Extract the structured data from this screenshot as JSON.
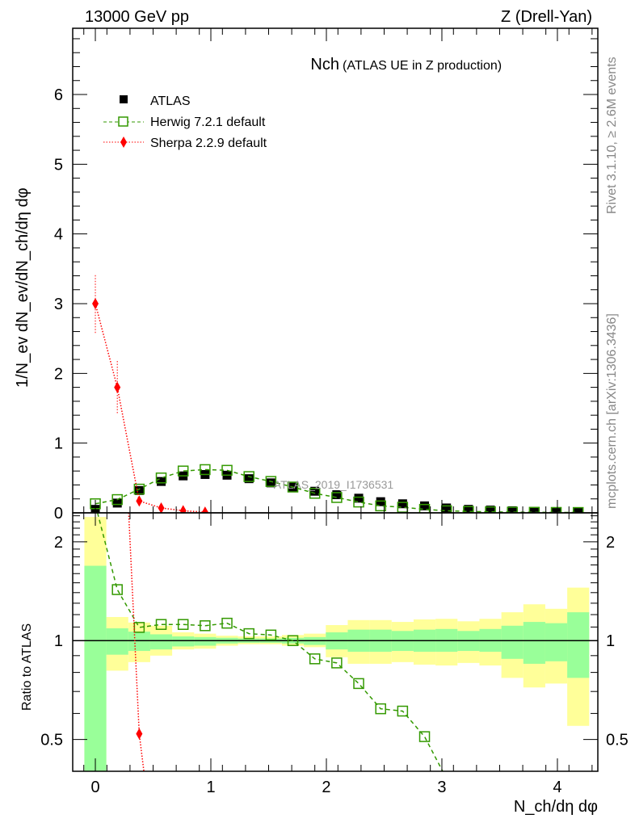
{
  "header": {
    "left": "13000 GeV pp",
    "right": "Z (Drell-Yan)"
  },
  "side_labels": {
    "rivet": "Rivet 3.1.10, ≥ 2.6M events",
    "mcplots": "mcplots.cern.ch [arXiv:1306.3436]"
  },
  "chart_data": [
    {
      "type": "scatter",
      "title": "Nch",
      "subtitle": "(ATLAS UE in Z production)",
      "watermark": "ATLAS_2019_I1736531",
      "ylabel": "1/N_ev dN_ev/dN_ch/dη dφ",
      "xlim": [
        -0.196,
        4.35
      ],
      "ylim": [
        0,
        6.95
      ],
      "yticks": [
        0,
        1,
        2,
        3,
        4,
        5,
        6
      ],
      "ytick_labels": [
        "0",
        "1",
        "2",
        "3",
        "4",
        "5",
        "6"
      ],
      "legend_position": "top-left",
      "x": [
        0,
        0.19,
        0.38,
        0.57,
        0.76,
        0.95,
        1.14,
        1.33,
        1.52,
        1.71,
        1.9,
        2.09,
        2.28,
        2.47,
        2.66,
        2.85,
        3.04,
        3.23,
        3.42,
        3.61,
        3.8,
        3.99,
        4.18
      ],
      "series": [
        {
          "name": "ATLAS",
          "color": "#000000",
          "values": [
            0.05,
            0.14,
            0.32,
            0.45,
            0.53,
            0.55,
            0.54,
            0.49,
            0.43,
            0.37,
            0.31,
            0.26,
            0.21,
            0.16,
            0.13,
            0.1,
            0.07,
            0.05,
            0.04,
            0.03,
            0.02,
            0.015,
            0.01
          ]
        },
        {
          "name": "Herwig 7.2.1 default",
          "color": "#339900",
          "values": [
            0.13,
            0.19,
            0.34,
            0.5,
            0.6,
            0.62,
            0.61,
            0.52,
            0.45,
            0.37,
            0.28,
            0.22,
            0.155,
            0.1,
            0.08,
            0.05,
            0.03,
            0.02,
            0.015,
            0.01,
            0.008,
            0.006,
            0.005
          ]
        },
        {
          "name": "Sherpa 2.2.9 default",
          "color": "#ff0000",
          "values": [
            3.0,
            1.8,
            0.17,
            0.07,
            0.03,
            0.01
          ],
          "err_low": [
            2.58,
            1.43,
            0.12,
            0.05,
            0.02,
            0.005
          ],
          "err_high": [
            3.43,
            2.18,
            0.22,
            0.09,
            0.04,
            0.015
          ]
        }
      ]
    },
    {
      "type": "line",
      "ylabel": "Ratio to ATLAS",
      "xlabel": "N_ch/dη dφ",
      "yscale": "log",
      "ylim": [
        0.4,
        2.45
      ],
      "yticks": [
        0.5,
        1,
        2
      ],
      "ytick_labels": [
        "0.5",
        "1",
        "2"
      ],
      "xticks": [
        0,
        1,
        2,
        3,
        4
      ],
      "xtick_labels": [
        "0",
        "1",
        "2",
        "3",
        "4"
      ],
      "bin_half_width": 0.095,
      "band_total": {
        "color": "#ffff99",
        "upper": [
          2.38,
          1.18,
          1.135,
          1.11,
          1.06,
          1.05,
          1.035,
          1.03,
          1.03,
          1.04,
          1.05,
          1.115,
          1.155,
          1.155,
          1.14,
          1.16,
          1.165,
          1.145,
          1.165,
          1.22,
          1.29,
          1.25,
          1.45
        ],
        "lower": [
          0.4,
          0.81,
          0.86,
          0.9,
          0.94,
          0.945,
          0.965,
          0.975,
          0.975,
          0.965,
          0.955,
          0.89,
          0.85,
          0.85,
          0.86,
          0.845,
          0.84,
          0.855,
          0.84,
          0.77,
          0.72,
          0.74,
          0.55
        ]
      },
      "band_stat": {
        "color": "#99ff99",
        "upper": [
          1.69,
          1.09,
          1.065,
          1.045,
          1.03,
          1.025,
          1.02,
          1.015,
          1.015,
          1.02,
          1.025,
          1.06,
          1.08,
          1.08,
          1.07,
          1.08,
          1.085,
          1.07,
          1.085,
          1.11,
          1.14,
          1.13,
          1.22
        ],
        "lower": [
          0.4,
          0.906,
          0.93,
          0.94,
          0.96,
          0.965,
          0.98,
          0.985,
          0.985,
          0.98,
          0.97,
          0.94,
          0.925,
          0.925,
          0.93,
          0.925,
          0.925,
          0.93,
          0.925,
          0.88,
          0.85,
          0.865,
          0.77
        ]
      },
      "herwig_ratio": [
        2.6,
        1.43,
        1.097,
        1.12,
        1.12,
        1.11,
        1.13,
        1.05,
        1.04,
        1.0,
        0.88,
        0.855,
        0.74,
        0.62,
        0.61,
        0.51,
        0.38
      ],
      "sherpa_ratio": [
        60,
        13,
        0.52,
        0.15
      ]
    }
  ]
}
